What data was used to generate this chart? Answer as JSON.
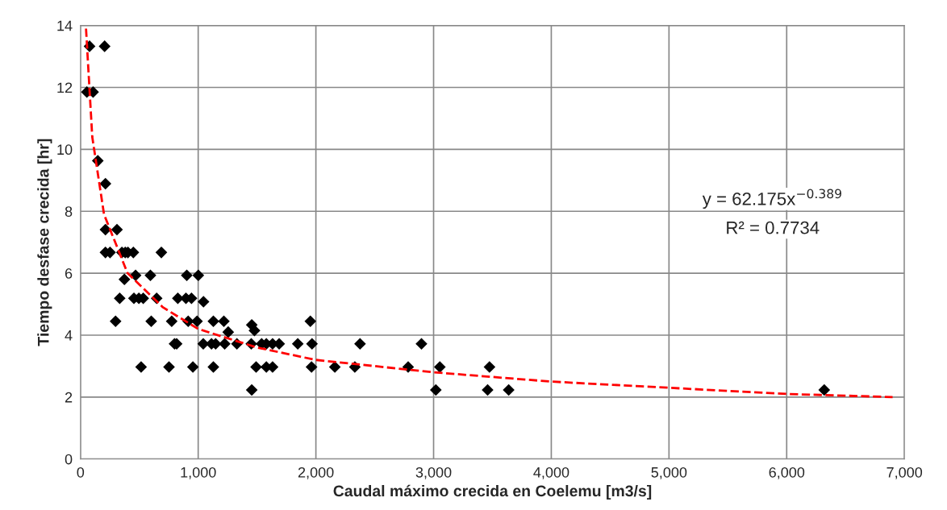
{
  "chart_data": {
    "type": "scatter",
    "xlabel": "Caudal máximo crecida en Coelemu [m3/s]",
    "ylabel": "Tiempo desfase crecida [hr]",
    "series": [
      {
        "color": "#000000",
        "marker": "diamond",
        "x": [
          77,
          205,
          54,
          107,
          147,
          212,
          212,
          310,
          212,
          251,
          352,
          380,
          403,
          449,
          687,
          468,
          594,
          903,
          1001,
          373,
          333,
          454,
          496,
          533,
          647,
          827,
          896,
          943,
          1045,
          298,
          601,
          775,
          915,
          990,
          1129,
          1218,
          1953,
          1455,
          1478,
          1255,
          799,
          817,
          1043,
          1113,
          1148,
          1225,
          1329,
          1451,
          1539,
          1579,
          1632,
          1688,
          1846,
          1967,
          2375,
          2897,
          515,
          752,
          955,
          1129,
          1492,
          1579,
          1632,
          1963,
          2161,
          2331,
          2784,
          3053,
          3475,
          1455,
          3019,
          3459,
          3638,
          6319
        ],
        "values": [
          13.33,
          13.33,
          11.85,
          11.85,
          9.63,
          8.89,
          7.41,
          7.41,
          6.67,
          6.67,
          6.67,
          6.67,
          6.67,
          6.67,
          6.67,
          5.93,
          5.93,
          5.93,
          5.93,
          5.8,
          5.19,
          5.19,
          5.19,
          5.19,
          5.19,
          5.19,
          5.19,
          5.19,
          5.08,
          4.45,
          4.45,
          4.45,
          4.45,
          4.45,
          4.45,
          4.45,
          4.45,
          4.33,
          4.15,
          4.1,
          3.72,
          3.72,
          3.72,
          3.72,
          3.72,
          3.72,
          3.72,
          3.72,
          3.72,
          3.72,
          3.72,
          3.72,
          3.72,
          3.72,
          3.72,
          3.72,
          2.97,
          2.97,
          2.97,
          2.97,
          2.97,
          2.97,
          2.97,
          2.97,
          2.97,
          2.97,
          2.97,
          2.97,
          2.97,
          2.23,
          2.23,
          2.23,
          2.23,
          2.23
        ]
      },
      {
        "type": "line",
        "color": "#ff0000",
        "line_style": "dashed",
        "marker": "none",
        "x": [
          47,
          100,
          200,
          400,
          700,
          1000,
          1500,
          2000,
          3000,
          4000,
          5000,
          6000,
          6900
        ],
        "values": [
          13.9,
          10.4,
          7.9,
          6.0,
          4.9,
          4.2,
          3.6,
          3.2,
          2.8,
          2.5,
          2.3,
          2.1,
          2.0
        ]
      }
    ],
    "xlim": [
      0,
      7000
    ],
    "xticks": [
      0,
      {
        "value": 1000,
        "label": "1,000"
      },
      {
        "value": 2000,
        "label": "2,000"
      },
      {
        "value": 3000,
        "label": "3,000"
      },
      {
        "value": 4000,
        "label": "4,000"
      },
      {
        "value": 5000,
        "label": "5,000"
      },
      {
        "value": 6000,
        "label": "6,000"
      },
      {
        "value": 7000,
        "label": "7,000"
      }
    ],
    "ylim": [
      0,
      14
    ],
    "yticks": [
      0,
      2,
      4,
      6,
      8,
      10,
      12,
      14
    ],
    "grid": true,
    "legend": false,
    "annotations": [
      "y = 62.175x$^{−0.389}$",
      "R² = 0.7734"
    ]
  }
}
